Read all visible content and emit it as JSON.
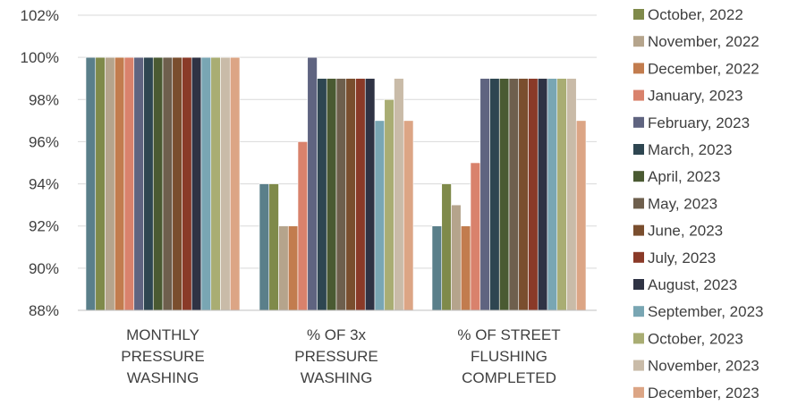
{
  "chart_data": {
    "type": "bar",
    "categories": [
      [
        "MONTHLY",
        "PRESSURE",
        "WASHING"
      ],
      [
        "% OF 3x",
        "PRESSURE",
        "WASHING"
      ],
      [
        "% OF STREET",
        "FLUSHING",
        "COMPLETED"
      ]
    ],
    "ylim": [
      88,
      102
    ],
    "yticks": [
      "88%",
      "90%",
      "92%",
      "94%",
      "96%",
      "98%",
      "100%",
      "102%"
    ],
    "grid": true,
    "legend_position": "right",
    "series": [
      {
        "name": "October, 2022",
        "color": "#5a7f8a",
        "values": [
          100,
          94,
          92
        ]
      },
      {
        "name": "October, 2022",
        "color": "#7f8a4a",
        "values": [
          100,
          94,
          94
        ]
      },
      {
        "name": "November, 2022",
        "color": "#b5a48c",
        "values": [
          100,
          92,
          93
        ]
      },
      {
        "name": "December, 2022",
        "color": "#c27c4e",
        "values": [
          100,
          92,
          92
        ]
      },
      {
        "name": "January, 2023",
        "color": "#d9826c",
        "values": [
          100,
          96,
          95
        ]
      },
      {
        "name": "February, 2023",
        "color": "#5f6480",
        "values": [
          100,
          100,
          99
        ]
      },
      {
        "name": "March, 2023",
        "color": "#2e4651",
        "values": [
          100,
          99,
          99
        ]
      },
      {
        "name": "April, 2023",
        "color": "#4a5a32",
        "values": [
          100,
          99,
          99
        ]
      },
      {
        "name": "May, 2023",
        "color": "#6e5f4d",
        "values": [
          100,
          99,
          99
        ]
      },
      {
        "name": "June, 2023",
        "color": "#7a4e2e",
        "values": [
          100,
          99,
          99
        ]
      },
      {
        "name": "July, 2023",
        "color": "#8a3a28",
        "values": [
          100,
          99,
          99
        ]
      },
      {
        "name": "August, 2023",
        "color": "#2f3344",
        "values": [
          100,
          99,
          99
        ]
      },
      {
        "name": "September, 2023",
        "color": "#79a6b3",
        "values": [
          100,
          97,
          99
        ]
      },
      {
        "name": "October, 2023",
        "color": "#a9ad73",
        "values": [
          100,
          98,
          99
        ]
      },
      {
        "name": "November, 2023",
        "color": "#c9bba8",
        "values": [
          100,
          99,
          99
        ]
      },
      {
        "name": "December, 2023",
        "color": "#dca585",
        "values": [
          100,
          97,
          97
        ]
      }
    ]
  }
}
